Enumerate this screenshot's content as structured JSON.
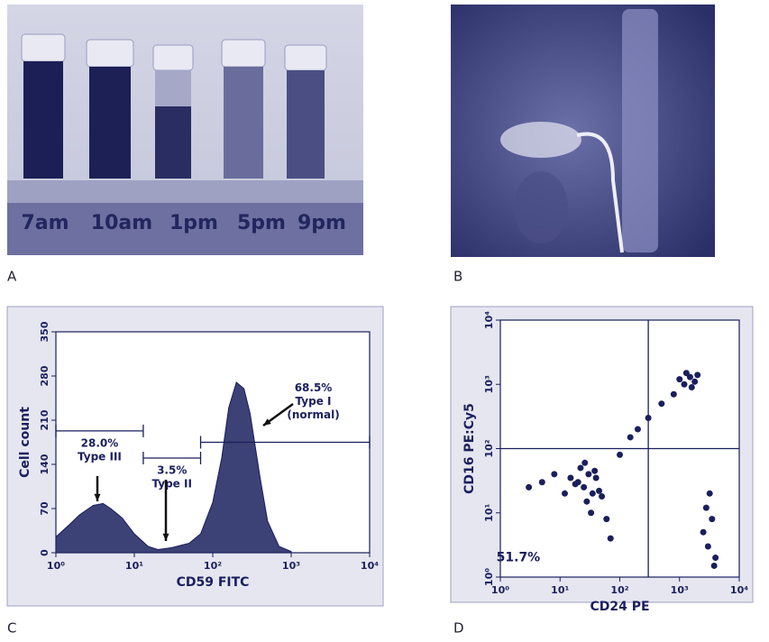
{
  "panels": {
    "a": {
      "label": "A",
      "times": [
        "7am",
        "10am",
        "1pm",
        "5pm",
        "9pm"
      ]
    },
    "b": {
      "label": "B"
    },
    "c": {
      "label": "C"
    },
    "d": {
      "label": "D"
    }
  },
  "chart_data": [
    {
      "type": "area",
      "xlabel": "CD59 FITC",
      "ylabel": "Cell count",
      "color": "#3c4176",
      "xlog": true,
      "x": [
        1,
        1.5,
        2,
        3,
        4,
        5,
        7,
        10,
        15,
        20,
        30,
        50,
        70,
        100,
        130,
        160,
        200,
        250,
        300,
        400,
        500,
        700,
        1000
      ],
      "values": [
        25,
        45,
        60,
        75,
        78,
        70,
        55,
        30,
        10,
        5,
        8,
        15,
        30,
        80,
        150,
        230,
        270,
        260,
        220,
        120,
        50,
        10,
        2
      ],
      "xlim": [
        1,
        10000
      ],
      "xticks": [
        {
          "value": 1,
          "label": "10⁰"
        },
        {
          "value": 10,
          "label": "10¹"
        },
        {
          "value": 100,
          "label": "10²"
        },
        {
          "value": 1000,
          "label": "10³"
        },
        {
          "value": 10000,
          "label": "10⁴"
        }
      ],
      "ylim": [
        0,
        350
      ],
      "yticks": [
        0,
        70,
        140,
        210,
        280,
        350
      ],
      "gates": [
        {
          "x": [
            1,
            13
          ],
          "y": 193,
          "label": "28.0%",
          "sublabel": "Type III"
        },
        {
          "x": [
            13,
            70
          ],
          "y": 150,
          "label": "3.5%",
          "sublabel": "Type II"
        },
        {
          "x": [
            70,
            10000
          ],
          "y": 175,
          "label": "68.5%",
          "sublabel": "Type I",
          "note": "(normal)"
        }
      ]
    },
    {
      "type": "scatter",
      "xlabel": "CD24 PE",
      "ylabel": "CD16 PE:Cy5",
      "color": "#1a1f5c",
      "xlog": true,
      "ylog": true,
      "x": [
        20,
        25,
        30,
        35,
        40,
        28,
        22,
        18,
        45,
        33,
        26,
        38,
        15,
        50,
        12,
        60,
        8,
        5,
        3,
        70,
        100,
        150,
        200,
        300,
        500,
        800,
        1000,
        1200,
        1500,
        1800,
        2000,
        1300,
        1600,
        2500,
        3000,
        3500,
        4000,
        2800,
        3200,
        3800
      ],
      "y": [
        30,
        25,
        40,
        20,
        35,
        15,
        50,
        28,
        22,
        10,
        60,
        45,
        35,
        18,
        20,
        8,
        40,
        30,
        25,
        4,
        80,
        150,
        200,
        300,
        500,
        700,
        1200,
        1000,
        1300,
        1100,
        1400,
        1500,
        900,
        5,
        3,
        8,
        2,
        12,
        20,
        1.5
      ],
      "xlim": [
        1,
        10000
      ],
      "ylim": [
        1,
        10000
      ],
      "xticks": [
        {
          "value": 1,
          "label": "10⁰"
        },
        {
          "value": 10,
          "label": "10¹"
        },
        {
          "value": 100,
          "label": "10²"
        },
        {
          "value": 1000,
          "label": "10³"
        },
        {
          "value": 10000,
          "label": "10⁴"
        }
      ],
      "yticks": [
        {
          "value": 1,
          "label": "10⁰"
        },
        {
          "value": 10,
          "label": "10¹"
        },
        {
          "value": 100,
          "label": "10²"
        },
        {
          "value": 1000,
          "label": "10³"
        },
        {
          "value": 10000,
          "label": "10⁴"
        }
      ],
      "quadrant": {
        "x": 300,
        "y": 100
      },
      "annotation": {
        "x": 2,
        "y": 2,
        "text": "51.7%"
      }
    }
  ]
}
